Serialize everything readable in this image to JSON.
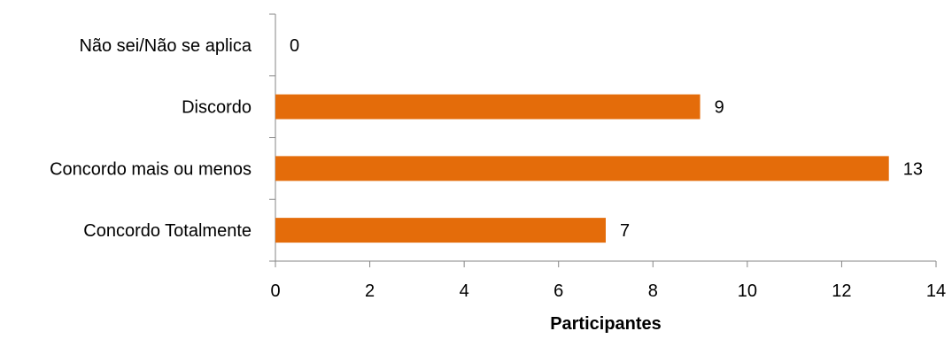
{
  "chart_data": {
    "type": "bar",
    "orientation": "horizontal",
    "title": "",
    "xlabel": "Participantes",
    "ylabel": "",
    "categories": [
      "Não sei/Não se aplica",
      "Discordo",
      "Concordo mais ou menos",
      "Concordo Totalmente"
    ],
    "values": [
      0,
      9,
      13,
      7
    ],
    "xlim": [
      0,
      14
    ],
    "xticks": [
      0,
      2,
      4,
      6,
      8,
      10,
      12,
      14
    ],
    "grid": false,
    "legend": "none",
    "data_labels": true,
    "bar_color": "#E46C0A"
  }
}
